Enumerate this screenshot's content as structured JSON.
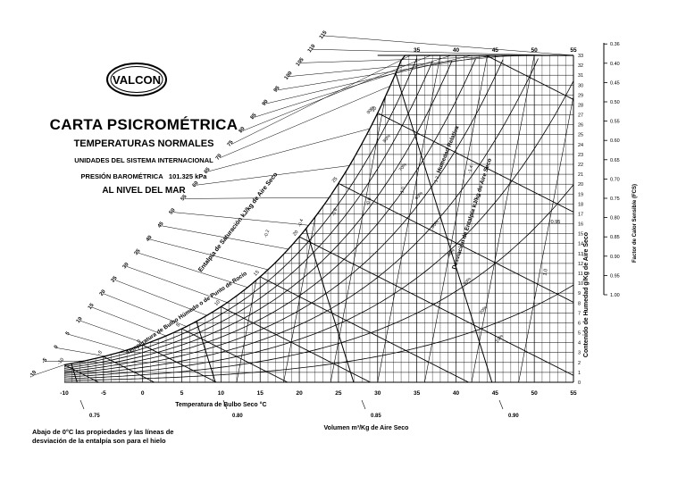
{
  "brand": {
    "logo_text": "VALCON"
  },
  "header": {
    "title": "CARTA PSICROMÉTRICA",
    "subtitle": "TEMPERATURAS NORMALES",
    "system": "UNIDADES DEL SISTEMA INTERNACIONAL",
    "pressure_label": "PRESIÓN BAROMÉTRICA",
    "pressure_value": "101.325 kPa",
    "level": "AL NIVEL DEL MAR"
  },
  "footnote": "Abajo de 0°C las propiedades y las líneas de desviación de la entalpía son para el hielo",
  "colors": {
    "ink": "#000000",
    "background": "#ffffff"
  },
  "chart_data": {
    "type": "line",
    "title": "CARTA PSICROMÉTRICA",
    "xlabel": "Temperatura de Bulbo Seco  °C",
    "ylabel": "Contenido de Humedad g/Kg de Aire Seco",
    "x_ticks": [
      -10,
      -5,
      0,
      5,
      10,
      15,
      20,
      25,
      30,
      35,
      40,
      45,
      50,
      55
    ],
    "top_ticks": [
      35,
      40,
      45,
      50,
      55
    ],
    "xlim": [
      -10,
      55
    ],
    "ylim": [
      0,
      33
    ],
    "y_ticks": [
      0,
      1,
      2,
      3,
      4,
      5,
      6,
      7,
      8,
      9,
      10,
      11,
      12,
      13,
      14,
      15,
      16,
      17,
      18,
      19,
      20,
      21,
      22,
      23,
      24,
      25,
      26,
      27,
      28,
      29,
      30,
      31,
      32,
      33
    ],
    "enthalpy_label": "Entalpía de Saturación  kJ/kg de Aire Seco",
    "enthalpy_ticks": [
      -10,
      -5,
      0,
      5,
      10,
      15,
      20,
      25,
      30,
      35,
      40,
      45,
      50,
      55,
      60,
      65,
      70,
      75,
      80,
      85,
      90,
      95,
      100,
      105,
      110,
      115
    ],
    "saturation_label": "Temperatura de Bulbo Húmedo o de Punto de Rocío",
    "saturation_ticks": [
      -10,
      -5,
      0,
      5,
      10,
      15,
      20,
      25,
      30
    ],
    "enthalpy_deviation_label": "Desviación de Entalpía  kJ/kg de Aire Seco",
    "deviation_ticks": [
      "-0.2",
      "-0.4",
      "-0.6",
      "-0.8",
      "-1.0",
      "-1.2",
      "-1.4"
    ],
    "rh_label": "Humedad Relativa",
    "rh_curves": [
      10,
      20,
      30,
      40,
      50,
      60,
      70,
      80,
      90
    ],
    "volume_label": "Volumen   m³/Kg de Aire Seco",
    "volume_ticks": [
      "0.75",
      "0.80",
      "0.85",
      "0.90"
    ],
    "shf_label": "Factor de Calor Sensible (FCS)",
    "shf_ticks": [
      "1.00",
      "0.95",
      "0.90",
      "0.85",
      "0.80",
      "0.75",
      "0.70",
      "0.65",
      "0.60",
      "0.55",
      "0.50",
      "0.45",
      "0.40",
      "0.36"
    ],
    "shf_inner_ticks": [
      "0.95",
      "1.0"
    ],
    "grid": true
  }
}
